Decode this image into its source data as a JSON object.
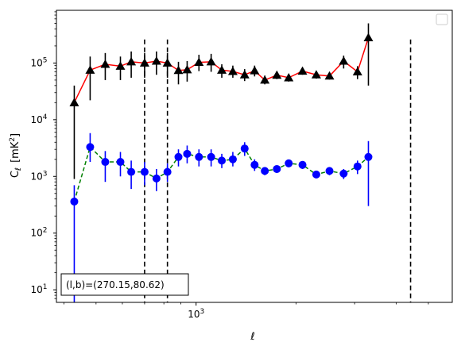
{
  "chart_data": {
    "type": "line",
    "xlabel": "ℓ",
    "ylabel_main": "C",
    "ylabel_sub": "ℓ",
    "ylabel_unit": "[mK",
    "ylabel_unit_sup": "2",
    "ylabel_unit_close": "]",
    "x_scale": "log",
    "y_scale": "log",
    "xlim": [
      380,
      5900
    ],
    "ylim": [
      6,
      850000
    ],
    "x_ticks": [
      {
        "value": 1000,
        "base": "10",
        "exp": "3"
      }
    ],
    "y_ticks": [
      {
        "value": 10,
        "base": "10",
        "exp": "1"
      },
      {
        "value": 100,
        "base": "10",
        "exp": "2"
      },
      {
        "value": 1000,
        "base": "10",
        "exp": "3"
      },
      {
        "value": 10000,
        "base": "10",
        "exp": "4"
      },
      {
        "value": 100000,
        "base": "10",
        "exp": "5"
      }
    ],
    "grid": false,
    "legend": "top-right (empty)",
    "vlines": [
      700,
      820,
      4420
    ],
    "annotation": "(l,b)=(270.15,80.62)",
    "series": [
      {
        "color": "#ff0000",
        "marker": "triangle",
        "marker_color": "#000000",
        "errorbar_color": "#000000",
        "linestyle": "solid",
        "points": [
          {
            "x": 430,
            "y": 20000,
            "lo": 900,
            "hi": 40000
          },
          {
            "x": 480,
            "y": 75000,
            "lo": 22000,
            "hi": 130000
          },
          {
            "x": 533,
            "y": 95000,
            "lo": 50000,
            "hi": 150000
          },
          {
            "x": 592,
            "y": 88000,
            "lo": 50000,
            "hi": 130000
          },
          {
            "x": 638,
            "y": 105000,
            "lo": 55000,
            "hi": 160000
          },
          {
            "x": 700,
            "y": 100000,
            "lo": 55000,
            "hi": 150000
          },
          {
            "x": 760,
            "y": 108000,
            "lo": 62000,
            "hi": 160000
          },
          {
            "x": 820,
            "y": 100000,
            "lo": 55000,
            "hi": 150000
          },
          {
            "x": 885,
            "y": 74000,
            "lo": 42000,
            "hi": 105000
          },
          {
            "x": 940,
            "y": 76000,
            "lo": 47000,
            "hi": 108000
          },
          {
            "x": 1020,
            "y": 103000,
            "lo": 72000,
            "hi": 140000
          },
          {
            "x": 1110,
            "y": 105000,
            "lo": 70000,
            "hi": 145000
          },
          {
            "x": 1195,
            "y": 75000,
            "lo": 55000,
            "hi": 95000
          },
          {
            "x": 1290,
            "y": 71000,
            "lo": 55000,
            "hi": 90000
          },
          {
            "x": 1400,
            "y": 62000,
            "lo": 48000,
            "hi": 78000
          },
          {
            "x": 1500,
            "y": 73000,
            "lo": 58000,
            "hi": 90000
          },
          {
            "x": 1610,
            "y": 50000,
            "lo": 42000,
            "hi": 60000
          },
          {
            "x": 1750,
            "y": 61000,
            "lo": 52000,
            "hi": 71000
          },
          {
            "x": 1900,
            "y": 55000,
            "lo": 47000,
            "hi": 63000
          },
          {
            "x": 2090,
            "y": 72000,
            "lo": 62000,
            "hi": 82000
          },
          {
            "x": 2300,
            "y": 62000,
            "lo": 53000,
            "hi": 71000
          },
          {
            "x": 2520,
            "y": 59000,
            "lo": 51000,
            "hi": 67000
          },
          {
            "x": 2780,
            "y": 108000,
            "lo": 80000,
            "hi": 135000
          },
          {
            "x": 3060,
            "y": 70000,
            "lo": 52000,
            "hi": 88000
          },
          {
            "x": 3300,
            "y": 280000,
            "lo": 40000,
            "hi": 500000
          }
        ]
      },
      {
        "color": "#008000",
        "marker": "circle",
        "marker_color": "#0000ff",
        "errorbar_color": "#0000ff",
        "linestyle": "dashed",
        "points": [
          {
            "x": 430,
            "y": 360,
            "lo": 6,
            "hi": 700
          },
          {
            "x": 480,
            "y": 3300,
            "lo": 1800,
            "hi": 5800
          },
          {
            "x": 533,
            "y": 1800,
            "lo": 800,
            "hi": 2800
          },
          {
            "x": 592,
            "y": 1800,
            "lo": 1000,
            "hi": 2700
          },
          {
            "x": 638,
            "y": 1200,
            "lo": 600,
            "hi": 1900
          },
          {
            "x": 700,
            "y": 1200,
            "lo": 700,
            "hi": 1800
          },
          {
            "x": 760,
            "y": 920,
            "lo": 550,
            "hi": 1350
          },
          {
            "x": 820,
            "y": 1200,
            "lo": 800,
            "hi": 1700
          },
          {
            "x": 885,
            "y": 2200,
            "lo": 1500,
            "hi": 3000
          },
          {
            "x": 940,
            "y": 2500,
            "lo": 1700,
            "hi": 3500
          },
          {
            "x": 1020,
            "y": 2200,
            "lo": 1500,
            "hi": 3000
          },
          {
            "x": 1110,
            "y": 2200,
            "lo": 1500,
            "hi": 3000
          },
          {
            "x": 1195,
            "y": 1900,
            "lo": 1400,
            "hi": 2500
          },
          {
            "x": 1290,
            "y": 2000,
            "lo": 1500,
            "hi": 2700
          },
          {
            "x": 1400,
            "y": 3100,
            "lo": 2300,
            "hi": 4000
          },
          {
            "x": 1500,
            "y": 1600,
            "lo": 1250,
            "hi": 2000
          },
          {
            "x": 1610,
            "y": 1250,
            "lo": 1050,
            "hi": 1450
          },
          {
            "x": 1750,
            "y": 1350,
            "lo": 1150,
            "hi": 1550
          },
          {
            "x": 1900,
            "y": 1700,
            "lo": 1450,
            "hi": 1950
          },
          {
            "x": 2090,
            "y": 1600,
            "lo": 1350,
            "hi": 1850
          },
          {
            "x": 2300,
            "y": 1080,
            "lo": 930,
            "hi": 1230
          },
          {
            "x": 2520,
            "y": 1250,
            "lo": 1050,
            "hi": 1450
          },
          {
            "x": 2780,
            "y": 1120,
            "lo": 900,
            "hi": 1350
          },
          {
            "x": 3060,
            "y": 1500,
            "lo": 1100,
            "hi": 1900
          },
          {
            "x": 3300,
            "y": 2200,
            "lo": 300,
            "hi": 4200
          }
        ]
      }
    ]
  }
}
